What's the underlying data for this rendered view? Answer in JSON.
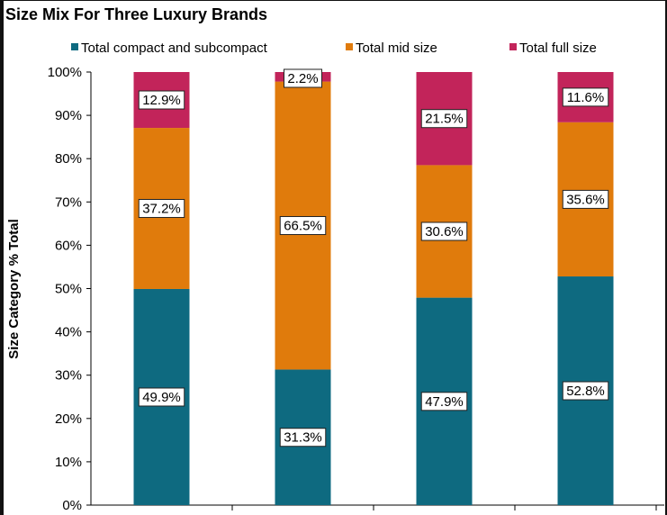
{
  "chart_data": {
    "type": "bar",
    "stacked": true,
    "title": "Size Mix For Three Luxury Brands",
    "ylabel": "Size Category % Total",
    "xlabel": "",
    "ylim": [
      0,
      100
    ],
    "yticks": [
      "0%",
      "10%",
      "20%",
      "30%",
      "40%",
      "50%",
      "60%",
      "70%",
      "80%",
      "90%",
      "100%"
    ],
    "categories": [
      "",
      "",
      "",
      ""
    ],
    "legend_position": "top",
    "grid": false,
    "series": [
      {
        "name": "Total compact and subcompact",
        "color": "#0e6a80",
        "values": [
          49.9,
          31.3,
          47.9,
          52.8
        ],
        "labels": [
          "49.9%",
          "31.3%",
          "47.9%",
          "52.8%"
        ]
      },
      {
        "name": "Total mid size",
        "color": "#e07b0c",
        "values": [
          37.2,
          66.5,
          30.6,
          35.6
        ],
        "labels": [
          "37.2%",
          "66.5%",
          "30.6%",
          "35.6%"
        ]
      },
      {
        "name": "Total full size",
        "color": "#c2245a",
        "values": [
          12.9,
          2.2,
          21.5,
          11.6
        ],
        "labels": [
          "12.9%",
          "2.2%",
          "21.5%",
          "11.6%"
        ]
      }
    ]
  }
}
